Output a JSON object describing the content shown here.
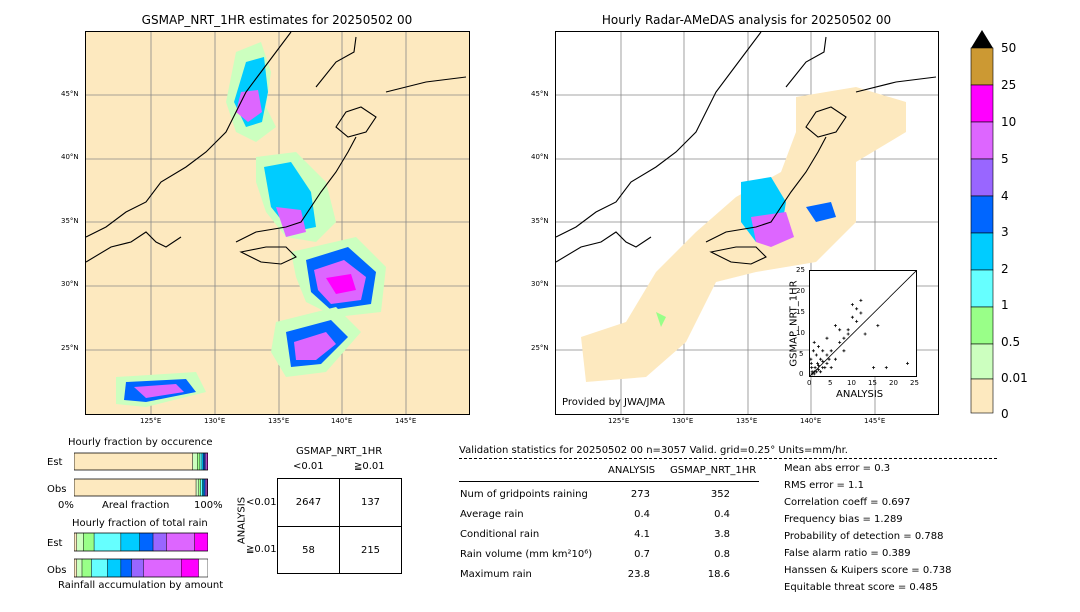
{
  "colors": {
    "land_bg": "#fde9bf",
    "c001": "#fde9bf",
    "c05": "#ccffbf",
    "c1": "#99ff88",
    "c2": "#66ffff",
    "c3": "#00ccff",
    "c4": "#0066ff",
    "c5": "#9966ff",
    "c10": "#dd66ff",
    "c25": "#ff00ff",
    "c50": "#cc9933",
    "over": "#000000"
  },
  "left_map": {
    "title": "GSMAP_NRT_1HR estimates for 20250502 00",
    "lat_labels": [
      "45°N",
      "40°N",
      "35°N",
      "30°N",
      "25°N"
    ],
    "lon_labels": [
      "125°E",
      "130°E",
      "135°E",
      "140°E",
      "145°E"
    ]
  },
  "right_map": {
    "title": "Hourly Radar-AMeDAS analysis for 20250502 00",
    "lat_labels": [
      "45°N",
      "40°N",
      "35°N",
      "30°N",
      "25°N"
    ],
    "lon_labels": [
      "125°E",
      "130°E",
      "135°E",
      "140°E",
      "145°E"
    ],
    "credit": "Provided by JWA/JMA"
  },
  "scatter": {
    "xlabel": "ANALYSIS",
    "ylabel": "GSMAP_NRT_1HR",
    "ticks": [
      "0",
      "5",
      "10",
      "15",
      "20",
      "25"
    ]
  },
  "colorbar": {
    "labels": [
      "50",
      "25",
      "10",
      "5",
      "4",
      "3",
      "2",
      "1",
      "0.5",
      "0.01",
      "0"
    ]
  },
  "fraction_occurrence": {
    "title": "Hourly fraction by occurence",
    "row_est": "Est",
    "row_obs": "Obs",
    "axis_left": "0%",
    "axis_mid": "Areal fraction",
    "axis_right": "100%"
  },
  "fraction_total": {
    "title": "Hourly fraction of total rain",
    "row_est": "Est",
    "row_obs": "Obs",
    "footer": "Rainfall accumulation by amount"
  },
  "contingency": {
    "title": "GSMAP_NRT_1HR",
    "col1": "<0.01",
    "col2": "≧0.01",
    "row1": "<0.01",
    "row2": "≧0.01",
    "side": "ANALYSIS",
    "a": "2647",
    "b": "137",
    "c": "58",
    "d": "215"
  },
  "validation": {
    "header": "Validation statistics for 20250502 00  n=3057 Valid. grid=0.25° Units=mm/hr.",
    "col_analysis": "ANALYSIS",
    "col_gsmap": "GSMAP_NRT_1HR",
    "rows": [
      {
        "label": "Num of gridpoints raining",
        "a": "273",
        "g": "352"
      },
      {
        "label": "Average rain",
        "a": "0.4",
        "g": "0.4"
      },
      {
        "label": "Conditional rain",
        "a": "4.1",
        "g": "3.8"
      },
      {
        "label": "Rain volume (mm km²10⁶)",
        "a": "0.7",
        "g": "0.8"
      },
      {
        "label": "Maximum rain",
        "a": "23.8",
        "g": "18.6"
      }
    ],
    "scores": [
      "Mean abs error =    0.3",
      "RMS error =    1.1",
      "Correlation coeff =  0.697",
      "Frequency bias =  1.289",
      "Probability of detection =  0.788",
      "False alarm ratio =  0.389",
      "Hanssen & Kuipers score =  0.738",
      "Equitable threat score =  0.485"
    ]
  },
  "chart_data": [
    {
      "type": "heatmap",
      "title": "GSMAP_NRT_1HR estimates for 20250502 00",
      "xlabel": "",
      "ylabel": "",
      "x_ticks": [
        "125°E",
        "130°E",
        "135°E",
        "140°E",
        "145°E"
      ],
      "y_ticks": [
        "45°N",
        "40°N",
        "35°N",
        "30°N",
        "25°N"
      ],
      "color_levels": [
        0,
        0.01,
        0.5,
        1,
        2,
        3,
        4,
        5,
        10,
        25,
        50
      ]
    },
    {
      "type": "heatmap",
      "title": "Hourly Radar-AMeDAS analysis for 20250502 00",
      "xlabel": "",
      "ylabel": "",
      "x_ticks": [
        "125°E",
        "130°E",
        "135°E",
        "140°E",
        "145°E"
      ],
      "y_ticks": [
        "45°N",
        "40°N",
        "35°N",
        "30°N",
        "25°N"
      ],
      "color_levels": [
        0,
        0.01,
        0.5,
        1,
        2,
        3,
        4,
        5,
        10,
        25,
        50
      ]
    },
    {
      "type": "scatter",
      "xlabel": "ANALYSIS",
      "ylabel": "GSMAP_NRT_1HR",
      "xlim": [
        0,
        25
      ],
      "ylim": [
        0,
        25
      ],
      "points": [
        [
          0.5,
          1
        ],
        [
          1,
          0.5
        ],
        [
          1.2,
          2
        ],
        [
          2,
          1.5
        ],
        [
          0.3,
          3
        ],
        [
          2.5,
          4
        ],
        [
          3,
          2
        ],
        [
          1.5,
          5
        ],
        [
          4,
          3
        ],
        [
          5,
          6
        ],
        [
          6,
          4
        ],
        [
          7,
          8
        ],
        [
          8,
          6
        ],
        [
          9,
          11
        ],
        [
          10,
          14
        ],
        [
          10,
          17
        ],
        [
          11,
          13
        ],
        [
          12,
          18
        ],
        [
          13,
          10
        ],
        [
          5,
          2
        ],
        [
          3,
          6
        ],
        [
          2,
          7
        ],
        [
          1,
          8
        ],
        [
          4,
          9
        ],
        [
          6,
          12
        ],
        [
          7,
          11
        ],
        [
          8,
          9
        ],
        [
          9,
          10
        ],
        [
          15,
          2
        ],
        [
          18,
          2
        ],
        [
          23,
          3
        ],
        [
          0.5,
          0.5
        ],
        [
          1,
          1
        ],
        [
          1.5,
          1
        ],
        [
          2,
          2.5
        ],
        [
          2.5,
          1
        ],
        [
          3,
          3.5
        ],
        [
          3.5,
          2
        ],
        [
          4,
          5
        ],
        [
          4.5,
          4
        ],
        [
          0.2,
          4
        ],
        [
          0.8,
          6
        ],
        [
          0.4,
          2
        ],
        [
          1.8,
          3
        ],
        [
          11,
          16
        ],
        [
          12,
          15
        ],
        [
          16,
          12
        ]
      ]
    },
    {
      "type": "bar",
      "title": "Hourly fraction by occurence",
      "categories": [
        "Est",
        "Obs"
      ],
      "series": [
        {
          "values": [
            0.885,
            0.911
          ]
        },
        {
          "values": [
            0.035,
            0.02
          ]
        },
        {
          "values": [
            0.02,
            0.015
          ]
        },
        {
          "values": [
            0.015,
            0.012
          ]
        },
        {
          "values": [
            0.01,
            0.01
          ]
        },
        {
          "values": [
            0.01,
            0.01
          ]
        },
        {
          "values": [
            0.008,
            0.008
          ]
        },
        {
          "values": [
            0.01,
            0.008
          ]
        },
        {
          "values": [
            0.007,
            0.006
          ]
        }
      ]
    },
    {
      "type": "bar",
      "title": "Hourly fraction of total rain",
      "categories": [
        "Est",
        "Obs"
      ],
      "series": [
        {
          "values": [
            0.02,
            0.02
          ]
        },
        {
          "values": [
            0.05,
            0.04
          ]
        },
        {
          "values": [
            0.08,
            0.07
          ]
        },
        {
          "values": [
            0.2,
            0.12
          ]
        },
        {
          "values": [
            0.14,
            0.1
          ]
        },
        {
          "values": [
            0.1,
            0.08
          ]
        },
        {
          "values": [
            0.1,
            0.09
          ]
        },
        {
          "values": [
            0.21,
            0.28
          ]
        },
        {
          "values": [
            0.1,
            0.13
          ]
        }
      ]
    }
  ]
}
